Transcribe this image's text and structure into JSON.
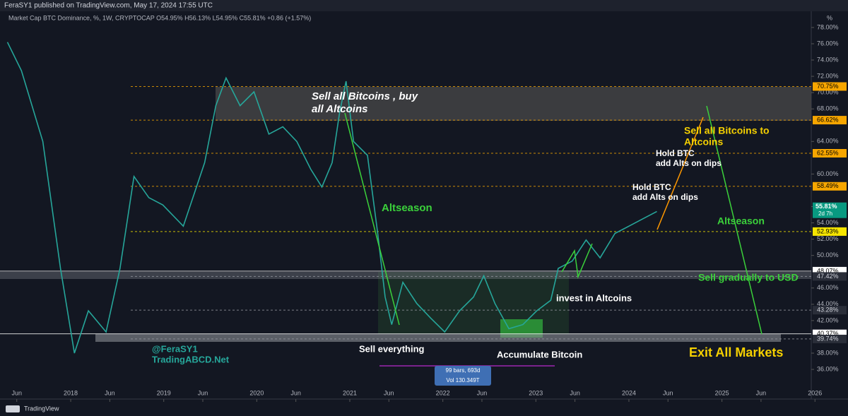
{
  "header": "FeraSY1 published on TradingView.com, May 17, 2024 17:55 UTC",
  "footer": "TradingView",
  "chart_data": {
    "type": "line",
    "title": "Market Cap BTC Dominance, %, 1W, CRYPTOCAP  O54.95%  H56.13%  L54.95%  C55.81%  +0.86 (+1.57%)",
    "currency_label": "%",
    "x": [
      2017.32,
      2017.47,
      2017.7,
      2017.89,
      2018.04,
      2018.19,
      2018.38,
      2018.53,
      2018.68,
      2018.84,
      2018.99,
      2019.21,
      2019.44,
      2019.56,
      2019.67,
      2019.82,
      2019.97,
      2020.13,
      2020.28,
      2020.43,
      2020.58,
      2020.7,
      2020.81,
      2020.89,
      2020.96,
      2021.04,
      2021.19,
      2021.3,
      2021.38,
      2021.45,
      2021.57,
      2021.72,
      2021.87,
      2022.02,
      2022.18,
      2022.33,
      2022.44,
      2022.56,
      2022.71,
      2022.86,
      2023.01,
      2023.16,
      2023.24,
      2023.39,
      2023.54,
      2023.69,
      2023.85,
      2024.0,
      2024.15,
      2024.3
    ],
    "values": [
      76.2,
      72.7,
      64.0,
      48.4,
      38.0,
      43.2,
      40.6,
      48.4,
      59.7,
      57.1,
      56.2,
      53.6,
      61.4,
      68.4,
      71.8,
      68.4,
      70.1,
      64.9,
      65.8,
      64.0,
      60.6,
      58.4,
      61.4,
      67.5,
      71.4,
      64.0,
      62.3,
      52.7,
      44.9,
      41.5,
      46.7,
      44.1,
      42.3,
      40.6,
      43.2,
      44.9,
      47.5,
      44.1,
      41.0,
      41.5,
      43.2,
      44.5,
      48.4,
      49.3,
      51.9,
      49.7,
      52.7,
      53.6,
      54.5,
      55.4
    ],
    "color": "#26a69a",
    "xlim": [
      2017.24,
      2025.96
    ],
    "xticks": [
      {
        "value": 2017.42,
        "label": "Jun"
      },
      2018,
      {
        "value": 2018.42,
        "label": "Jun"
      },
      2019,
      {
        "value": 2019.42,
        "label": "Jun"
      },
      2020,
      {
        "value": 2020.42,
        "label": "Jun"
      },
      2021,
      {
        "value": 2021.42,
        "label": "Jun"
      },
      2022,
      {
        "value": 2022.42,
        "label": "Jun"
      },
      2023,
      {
        "value": 2023.42,
        "label": "Jun"
      },
      2024,
      {
        "value": 2024.42,
        "label": "Jun"
      },
      2025,
      {
        "value": 2025.42,
        "label": "Jun"
      },
      2026
    ],
    "ylim": [
      32.36,
      79.64
    ],
    "yticks": [
      {
        "value": 36,
        "label": "36.00%"
      },
      {
        "value": 38,
        "label": "38.00%"
      },
      {
        "value": 42,
        "label": "42.00%"
      },
      {
        "value": 44,
        "label": "44.00%"
      },
      {
        "value": 46,
        "label": "46.00%"
      },
      {
        "value": 50,
        "label": "50.00%"
      },
      {
        "value": 52,
        "label": "52.00%"
      },
      {
        "value": 54,
        "label": "54.00%"
      },
      {
        "value": 56,
        "label": "56.00%"
      },
      {
        "value": 60,
        "label": "60.00%"
      },
      {
        "value": 64,
        "label": "64.00%"
      },
      {
        "value": 68,
        "label": "68.00%"
      },
      {
        "value": 70,
        "label": "70.00%"
      },
      {
        "value": 72,
        "label": "72.00%"
      },
      {
        "value": 74,
        "label": "74.00%"
      },
      {
        "value": 76,
        "label": "76.00%"
      },
      {
        "value": 78,
        "label": "78.00%"
      }
    ],
    "levels": [
      {
        "value": 70.75,
        "label": "70.75%",
        "color": "#f7a600"
      },
      {
        "value": 66.62,
        "label": "66.62%",
        "color": "#f7a600"
      },
      {
        "value": 62.55,
        "label": "62.55%",
        "color": "#f7a600"
      },
      {
        "value": 58.49,
        "label": "58.49%",
        "color": "#f7a600"
      },
      {
        "value": 52.93,
        "label": "52.93%",
        "color": "#f7e600"
      },
      {
        "value": 48.07,
        "label": "48.07%",
        "color": "#ffffff"
      },
      {
        "value": 47.42,
        "label": "47.42%",
        "color": "#9598a1"
      },
      {
        "value": 43.28,
        "label": "43.28%",
        "color": "#9598a1"
      },
      {
        "value": 40.37,
        "label": "40.37%",
        "color": "#ffffff"
      },
      {
        "value": 39.74,
        "label": "39.74%",
        "color": "#9598a1"
      }
    ],
    "last": {
      "value": 55.81,
      "label": "55.81%",
      "countdown": "2d 7h"
    },
    "measure": [
      "99 bars, 693d",
      "Vol 130.349T"
    ],
    "annotations": [
      "Sell all Bitcoins , buy",
      "all Altcoins",
      "Altseason",
      "Sell everything",
      "@FeraSY1",
      "TradingABCD.Net",
      "Accumulate Bitcoin",
      "invest in Altcoins",
      "Hold BTC",
      "add Alts on dips",
      "Hold BTC",
      "add Alts on dips",
      "Sell all Bitcoins to",
      "Altcoins",
      "Altseason",
      "Sell gradually to USD",
      "Exit All Markets"
    ]
  }
}
